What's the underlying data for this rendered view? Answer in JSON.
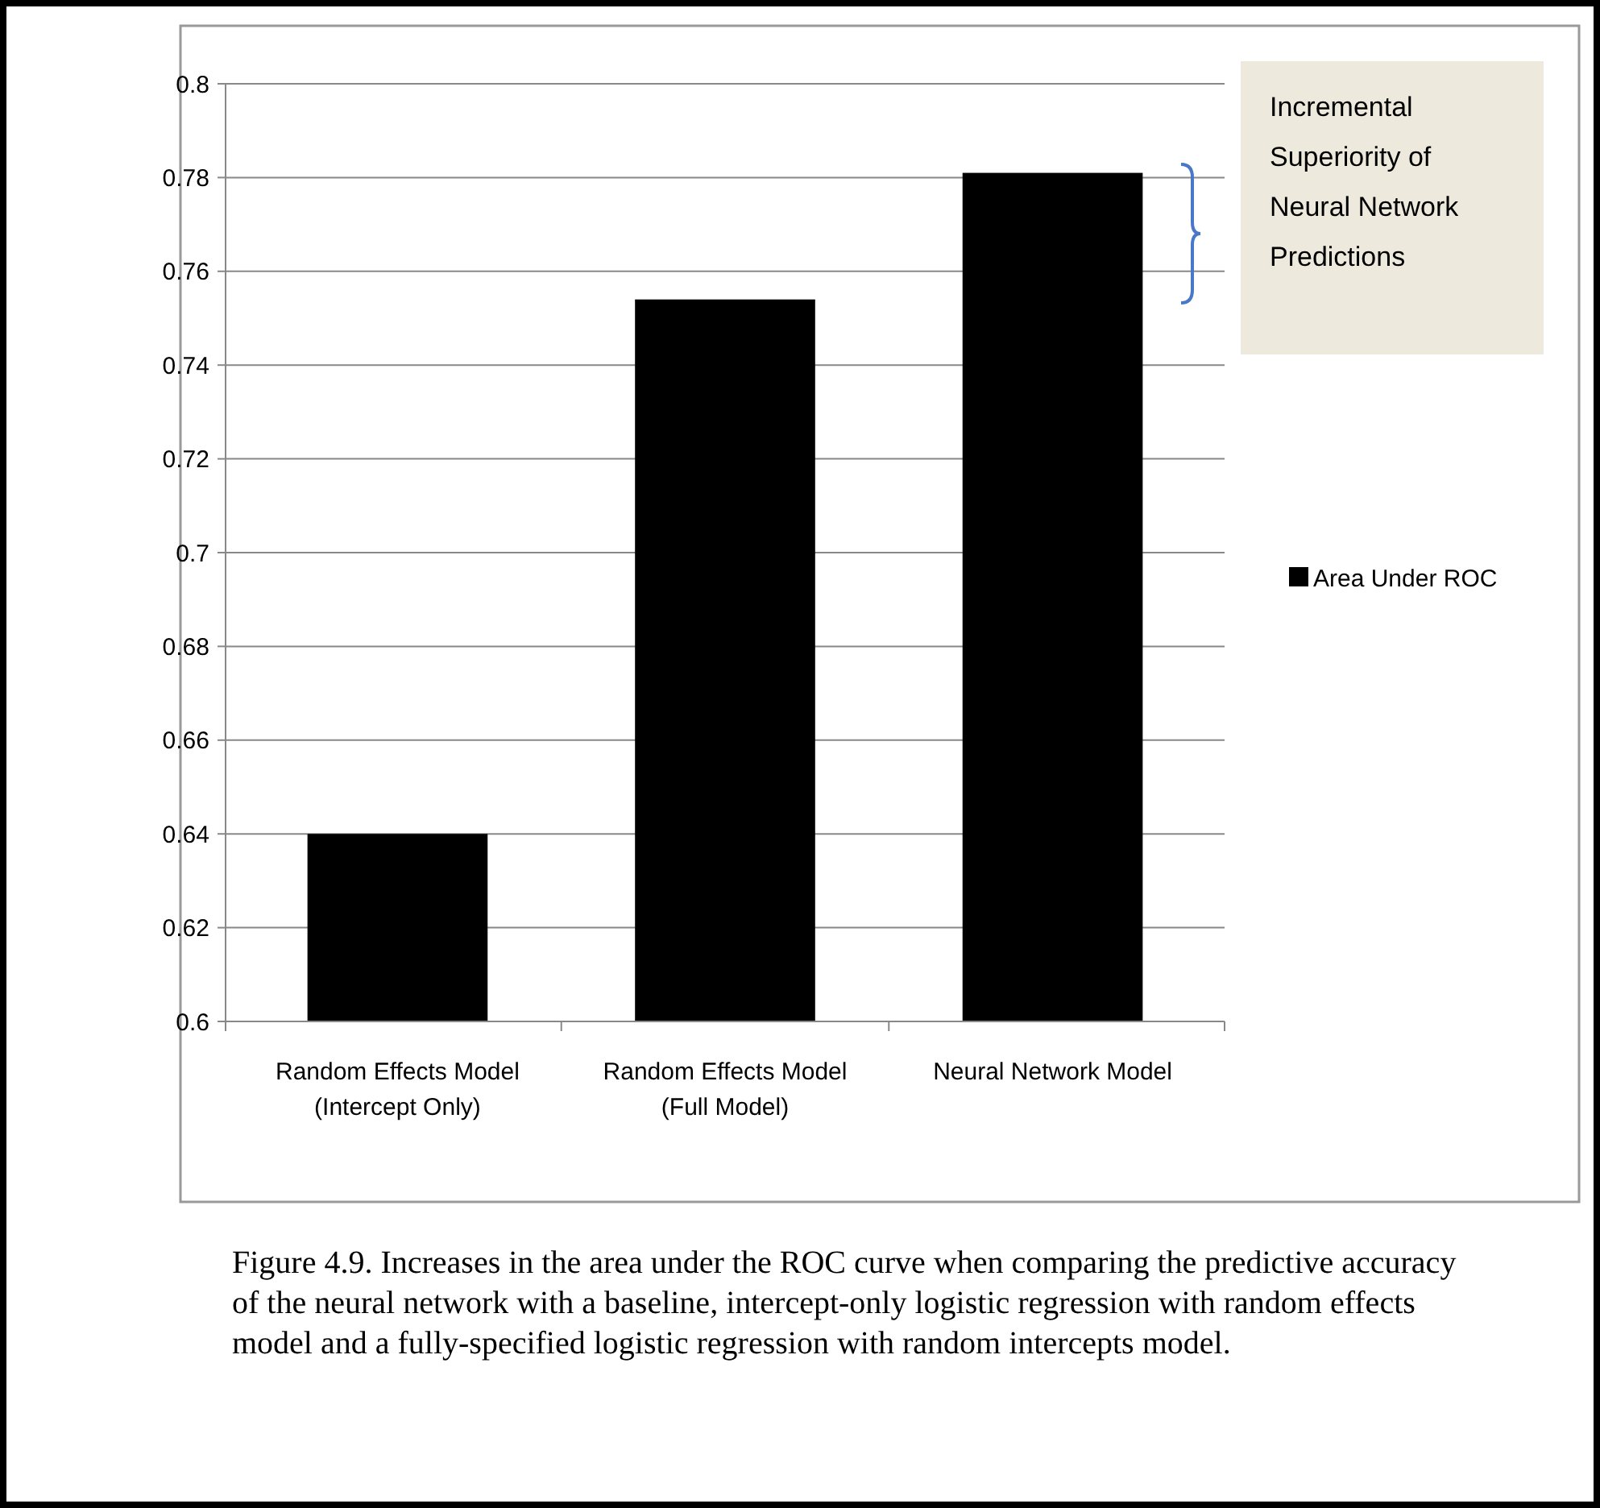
{
  "chart_data": {
    "type": "bar",
    "categories": [
      "Random Effects Model (Intercept Only)",
      "Random Effects Model (Full Model)",
      "Neural Network Model"
    ],
    "series": [
      {
        "name": "Area Under ROC",
        "color": "#000000",
        "values": [
          0.64,
          0.754,
          0.781
        ]
      }
    ],
    "ylim": [
      0.6,
      0.8
    ],
    "yticks": [
      0.6,
      0.62,
      0.64,
      0.66,
      0.68,
      0.7,
      0.72,
      0.74,
      0.76,
      0.78,
      0.8
    ],
    "grid": "y",
    "legend": "right",
    "annotations": [
      "Incremental Superiority of Neural Network Predictions",
      "Figure 4.9. Increases in the area under the ROC curve when comparing the predictive accuracy of the neural network with a baseline, intercept-only logistic regression with random effects model and a fully-specified logistic regression with random intercepts model."
    ]
  }
}
